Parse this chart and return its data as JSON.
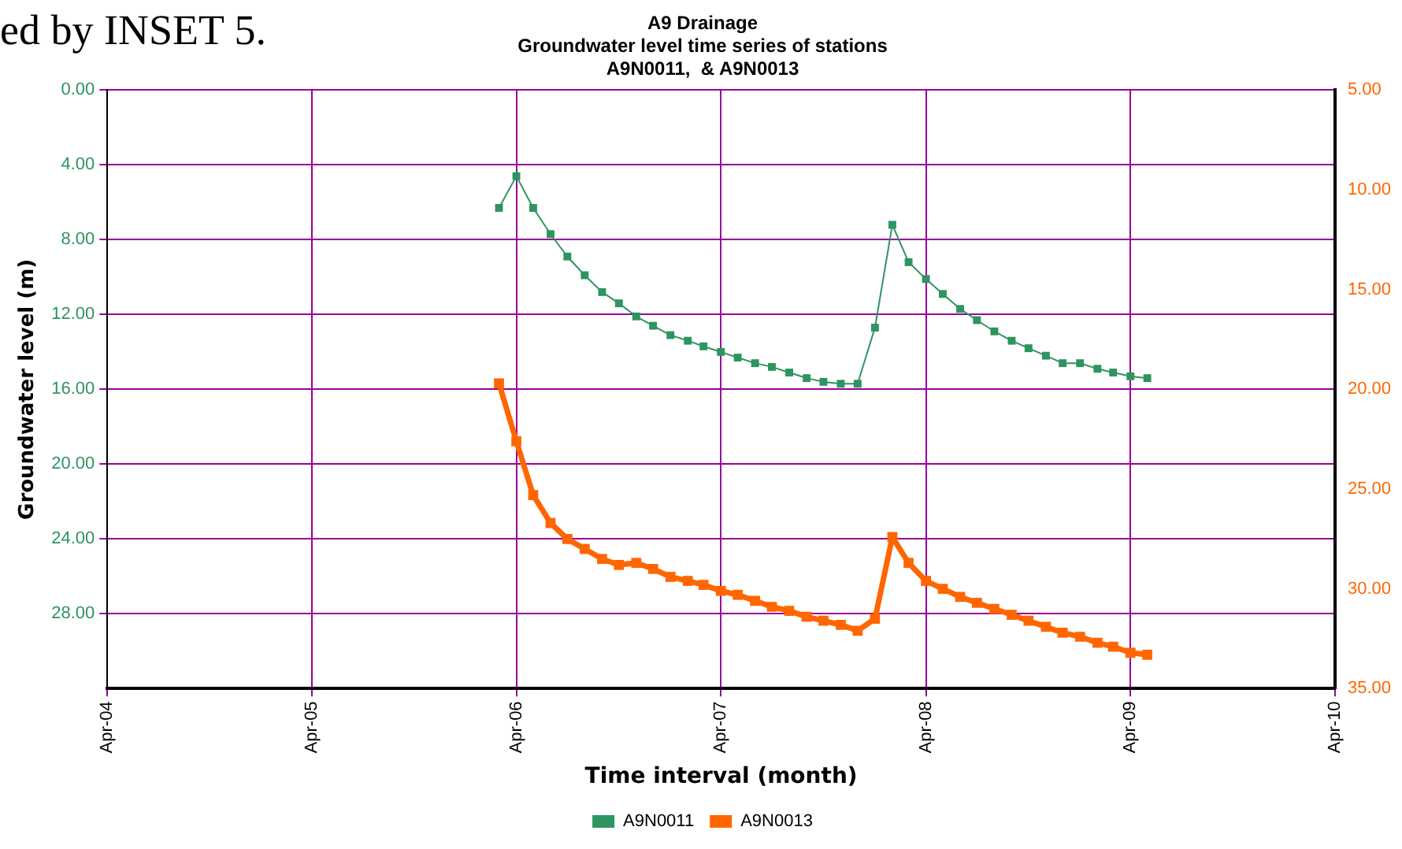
{
  "chart_data": {
    "type": "line",
    "title": "A9 Drainage\nGroundwater level time series of stations\nA9N0011,  & A9N0013",
    "xlabel": "Time interval (month)",
    "ylabel": "Groundwater level (m)",
    "annotations": [
      "ed by INSET 5."
    ],
    "x": [
      "2006-03",
      "2006-04",
      "2006-05",
      "2006-06",
      "2006-07",
      "2006-08",
      "2006-09",
      "2006-10",
      "2006-11",
      "2006-12",
      "2007-01",
      "2007-02",
      "2007-03",
      "2007-04",
      "2007-05",
      "2007-06",
      "2007-07",
      "2007-08",
      "2007-09",
      "2007-10",
      "2007-11",
      "2007-12",
      "2008-01",
      "2008-02",
      "2008-03",
      "2008-04",
      "2008-05",
      "2008-06",
      "2008-07",
      "2008-08",
      "2008-09",
      "2008-10",
      "2008-11",
      "2008-12",
      "2009-01",
      "2009-02",
      "2009-03",
      "2009-04",
      "2009-05"
    ],
    "series": [
      {
        "name": "A9N0011",
        "color": "#2e9460",
        "values": [
          6.3,
          4.6,
          6.3,
          7.7,
          8.9,
          9.9,
          10.8,
          11.4,
          12.1,
          12.6,
          13.1,
          13.4,
          13.7,
          14.0,
          14.3,
          14.6,
          14.8,
          15.1,
          15.4,
          15.6,
          15.7,
          15.7,
          12.7,
          7.2,
          9.2,
          10.1,
          10.9,
          11.7,
          12.3,
          12.9,
          13.4,
          13.8,
          14.2,
          14.6,
          14.6,
          14.9,
          15.1,
          15.3,
          15.4
        ]
      },
      {
        "name": "A9N0013",
        "color": "#ff6600",
        "axis": "y2",
        "values": [
          19.7,
          22.6,
          25.3,
          26.7,
          27.5,
          28.0,
          28.5,
          28.8,
          28.7,
          29.0,
          29.4,
          29.6,
          29.8,
          30.1,
          30.3,
          30.6,
          30.9,
          31.1,
          31.4,
          31.6,
          31.8,
          32.1,
          31.5,
          27.4,
          28.7,
          29.6,
          30.0,
          30.4,
          30.7,
          31.0,
          31.3,
          31.6,
          31.9,
          32.2,
          32.4,
          32.7,
          32.9,
          33.2,
          33.3
        ]
      }
    ],
    "xlim": [
      "2004-04",
      "2010-04"
    ],
    "xticks": [
      {
        "value": "2004-04",
        "label": "Apr-04"
      },
      {
        "value": "2005-04",
        "label": "Apr-05"
      },
      {
        "value": "2006-04",
        "label": "Apr-06"
      },
      {
        "value": "2007-04",
        "label": "Apr-07"
      },
      {
        "value": "2008-04",
        "label": "Apr-08"
      },
      {
        "value": "2009-04",
        "label": "Apr-09"
      },
      {
        "value": "2010-04",
        "label": "Apr-10"
      }
    ],
    "ylim": [
      32,
      0
    ],
    "yticks": [
      {
        "value": 0,
        "label": "0.00"
      },
      {
        "value": 4,
        "label": "4.00"
      },
      {
        "value": 8,
        "label": "8.00"
      },
      {
        "value": 12,
        "label": "12.00"
      },
      {
        "value": 16,
        "label": "16.00"
      },
      {
        "value": 20,
        "label": "20.00"
      },
      {
        "value": 24,
        "label": "24.00"
      },
      {
        "value": 28,
        "label": "28.00"
      }
    ],
    "y2lim": [
      35,
      5
    ],
    "y2ticks": [
      {
        "value": 5,
        "label": "5.00"
      },
      {
        "value": 10,
        "label": "10.00"
      },
      {
        "value": 15,
        "label": "15.00"
      },
      {
        "value": 20,
        "label": "20.00"
      },
      {
        "value": 25,
        "label": "25.00"
      },
      {
        "value": 30,
        "label": "30.00"
      },
      {
        "value": 35,
        "label": "35.00"
      }
    ],
    "grid": true,
    "legend": "bottom",
    "marker": "square",
    "line_style": "solid"
  }
}
